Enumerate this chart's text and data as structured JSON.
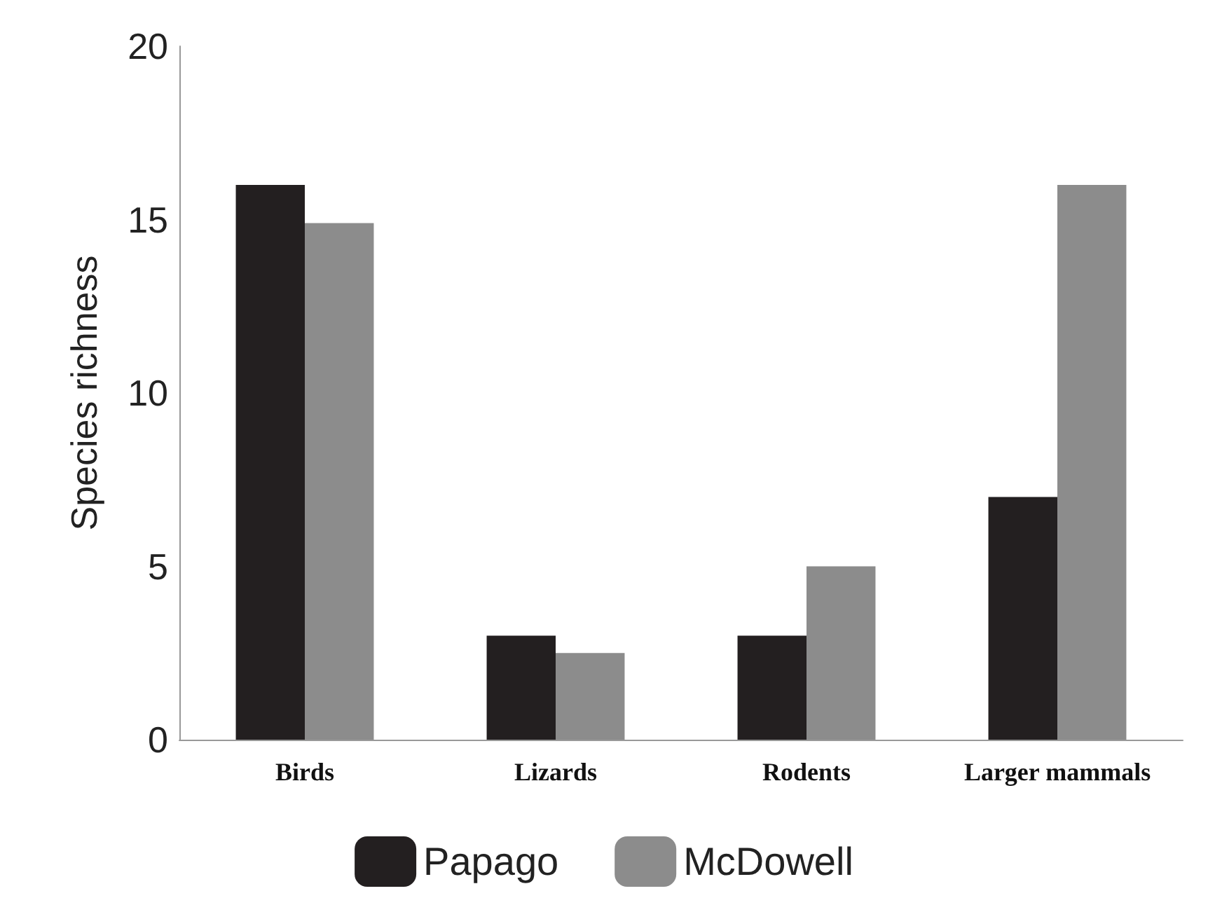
{
  "chart_data": {
    "type": "bar",
    "ylabel": "Species richness",
    "categories": [
      "Birds",
      "Lizards",
      "Rodents",
      "Larger mammals"
    ],
    "series": [
      {
        "name": "Papago",
        "color": "#231f20",
        "values": [
          16,
          3,
          3,
          7
        ]
      },
      {
        "name": "McDowell",
        "color": "#8c8c8c",
        "values": [
          14.9,
          2.5,
          5,
          16
        ]
      }
    ],
    "ylim": [
      0,
      20
    ],
    "yticks": [
      0,
      5,
      10,
      15,
      20
    ],
    "legend": "bottom"
  }
}
